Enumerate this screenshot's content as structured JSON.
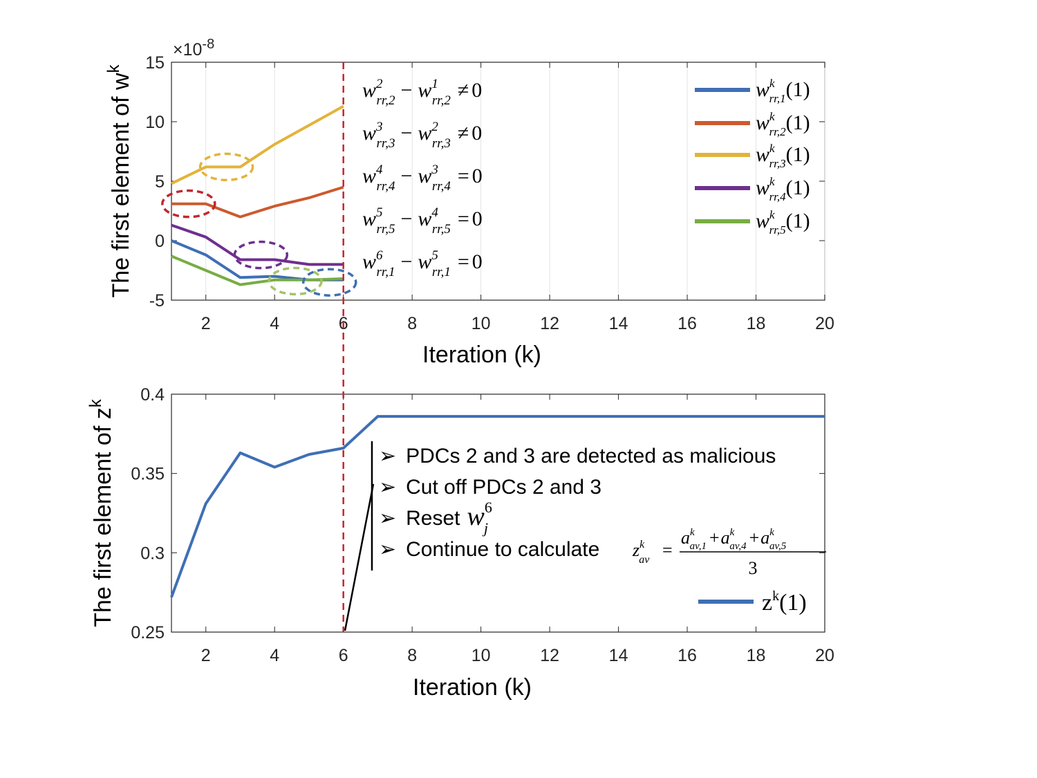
{
  "chart_data": [
    {
      "type": "line",
      "id": "top",
      "ylabel_main": "The first element of w",
      "ylabel_sup": "k",
      "xlabel": "Iteration (k)",
      "exponent_times": "×10",
      "exponent_power": "-8",
      "xlim": [
        1,
        20
      ],
      "ylim": [
        -5,
        15
      ],
      "xticks": [
        2,
        4,
        6,
        8,
        10,
        12,
        14,
        16,
        18,
        20
      ],
      "yticks": [
        -5,
        0,
        5,
        10,
        15
      ],
      "series": [
        {
          "name": "w_rr,1^k(1)",
          "base": "w",
          "sup": "k",
          "sub": "rr,1",
          "paren": "(1)",
          "color": "#3f6fb5",
          "x": [
            1,
            2,
            3,
            4,
            5,
            6
          ],
          "values": [
            0.0,
            -1.2,
            -3.1,
            -3.0,
            -3.3,
            -3.3
          ]
        },
        {
          "name": "w_rr,2^k(1)",
          "base": "w",
          "sup": "k",
          "sub": "rr,2",
          "paren": "(1)",
          "color": "#cc5a2e",
          "x": [
            1,
            2,
            3,
            4,
            5,
            6
          ],
          "values": [
            3.1,
            3.1,
            2.0,
            2.9,
            3.6,
            4.5
          ]
        },
        {
          "name": "w_rr,3^k(1)",
          "base": "w",
          "sup": "k",
          "sub": "rr,3",
          "paren": "(1)",
          "color": "#e3b33b",
          "x": [
            1,
            2,
            3,
            4,
            5,
            6
          ],
          "values": [
            4.8,
            6.2,
            6.2,
            8.1,
            9.7,
            11.3
          ]
        },
        {
          "name": "w_rr,4^k(1)",
          "base": "w",
          "sup": "k",
          "sub": "rr,4",
          "paren": "(1)",
          "color": "#6f2f8f",
          "x": [
            1,
            2,
            3,
            4,
            5,
            6
          ],
          "values": [
            1.3,
            0.3,
            -1.6,
            -1.6,
            -2.0,
            -2.0
          ]
        },
        {
          "name": "w_rr,5^k(1)",
          "base": "w",
          "sup": "k",
          "sub": "rr,5",
          "paren": "(1)",
          "color": "#77ad44",
          "x": [
            1,
            2,
            3,
            4,
            5,
            6
          ],
          "values": [
            -1.3,
            -2.5,
            -3.7,
            -3.3,
            -3.3,
            -3.2
          ]
        }
      ],
      "annotations": [
        {
          "a": "w",
          "asup": "2",
          "asub": "rr,2",
          "b": "w",
          "bsup": "1",
          "bsub": "rr,2",
          "op": "≠",
          "rhs": "0"
        },
        {
          "a": "w",
          "asup": "3",
          "asub": "rr,3",
          "b": "w",
          "bsup": "2",
          "bsub": "rr,3",
          "op": "≠",
          "rhs": "0"
        },
        {
          "a": "w",
          "asup": "4",
          "asub": "rr,4",
          "b": "w",
          "bsup": "3",
          "bsub": "rr,4",
          "op": "=",
          "rhs": "0"
        },
        {
          "a": "w",
          "asup": "5",
          "asub": "rr,5",
          "b": "w",
          "bsup": "4",
          "bsub": "rr,5",
          "op": "=",
          "rhs": "0"
        },
        {
          "a": "w",
          "asup": "6",
          "asub": "rr,1",
          "b": "w",
          "bsup": "5",
          "bsub": "rr,1",
          "op": "=",
          "rhs": "0"
        }
      ],
      "highlights": [
        {
          "x": 1.5,
          "y": 3.1,
          "color": "#c0282e"
        },
        {
          "x": 2.6,
          "y": 6.2,
          "color": "#e3b33b"
        },
        {
          "x": 3.6,
          "y": -1.2,
          "color": "#6f2f8f"
        },
        {
          "x": 4.6,
          "y": -3.4,
          "color": "#a6c26a"
        },
        {
          "x": 5.6,
          "y": -3.5,
          "color": "#3f6fb5"
        }
      ]
    },
    {
      "type": "line",
      "id": "bottom",
      "ylabel_main": "The first element of z",
      "ylabel_sup": "k",
      "xlabel": "Iteration (k)",
      "xlim": [
        1,
        20
      ],
      "ylim": [
        0.25,
        0.4
      ],
      "xticks": [
        2,
        4,
        6,
        8,
        10,
        12,
        14,
        16,
        18,
        20
      ],
      "yticks": [
        0.25,
        0.3,
        0.35,
        0.4
      ],
      "series": [
        {
          "name": "z^k(1)",
          "color": "#3f6fb5",
          "x": [
            1,
            2,
            3,
            4,
            5,
            6,
            7,
            8,
            9,
            10,
            11,
            12,
            13,
            14,
            15,
            16,
            17,
            18,
            19,
            20
          ],
          "values": [
            0.272,
            0.331,
            0.363,
            0.354,
            0.362,
            0.366,
            0.386,
            0.386,
            0.386,
            0.386,
            0.386,
            0.386,
            0.386,
            0.386,
            0.386,
            0.386,
            0.386,
            0.386,
            0.386,
            0.386
          ]
        }
      ],
      "legend": {
        "base": "z",
        "sup": "k",
        "paren": "(1)"
      }
    }
  ],
  "divider_iteration": 6,
  "bullets": {
    "marker": "➢",
    "b1": "PDCs 2 and 3 are detected as malicious",
    "b2": "Cut off PDCs 2 and 3",
    "b3": "Reset",
    "b3_var": "w",
    "b3_sup": "6",
    "b3_sub": "j",
    "b4": "Continue to calculate",
    "formula": {
      "lhs": "z",
      "lhs_sup": "k",
      "lhs_sub": "av",
      "eq": "=",
      "t1": "a",
      "t1_sup": "k",
      "t1_sub": "av,1",
      "plus": "+",
      "t2": "a",
      "t2_sup": "k",
      "t2_sub": "av,4",
      "t3": "a",
      "t3_sup": "k",
      "t3_sub": "av,5",
      "denom": "3"
    }
  }
}
